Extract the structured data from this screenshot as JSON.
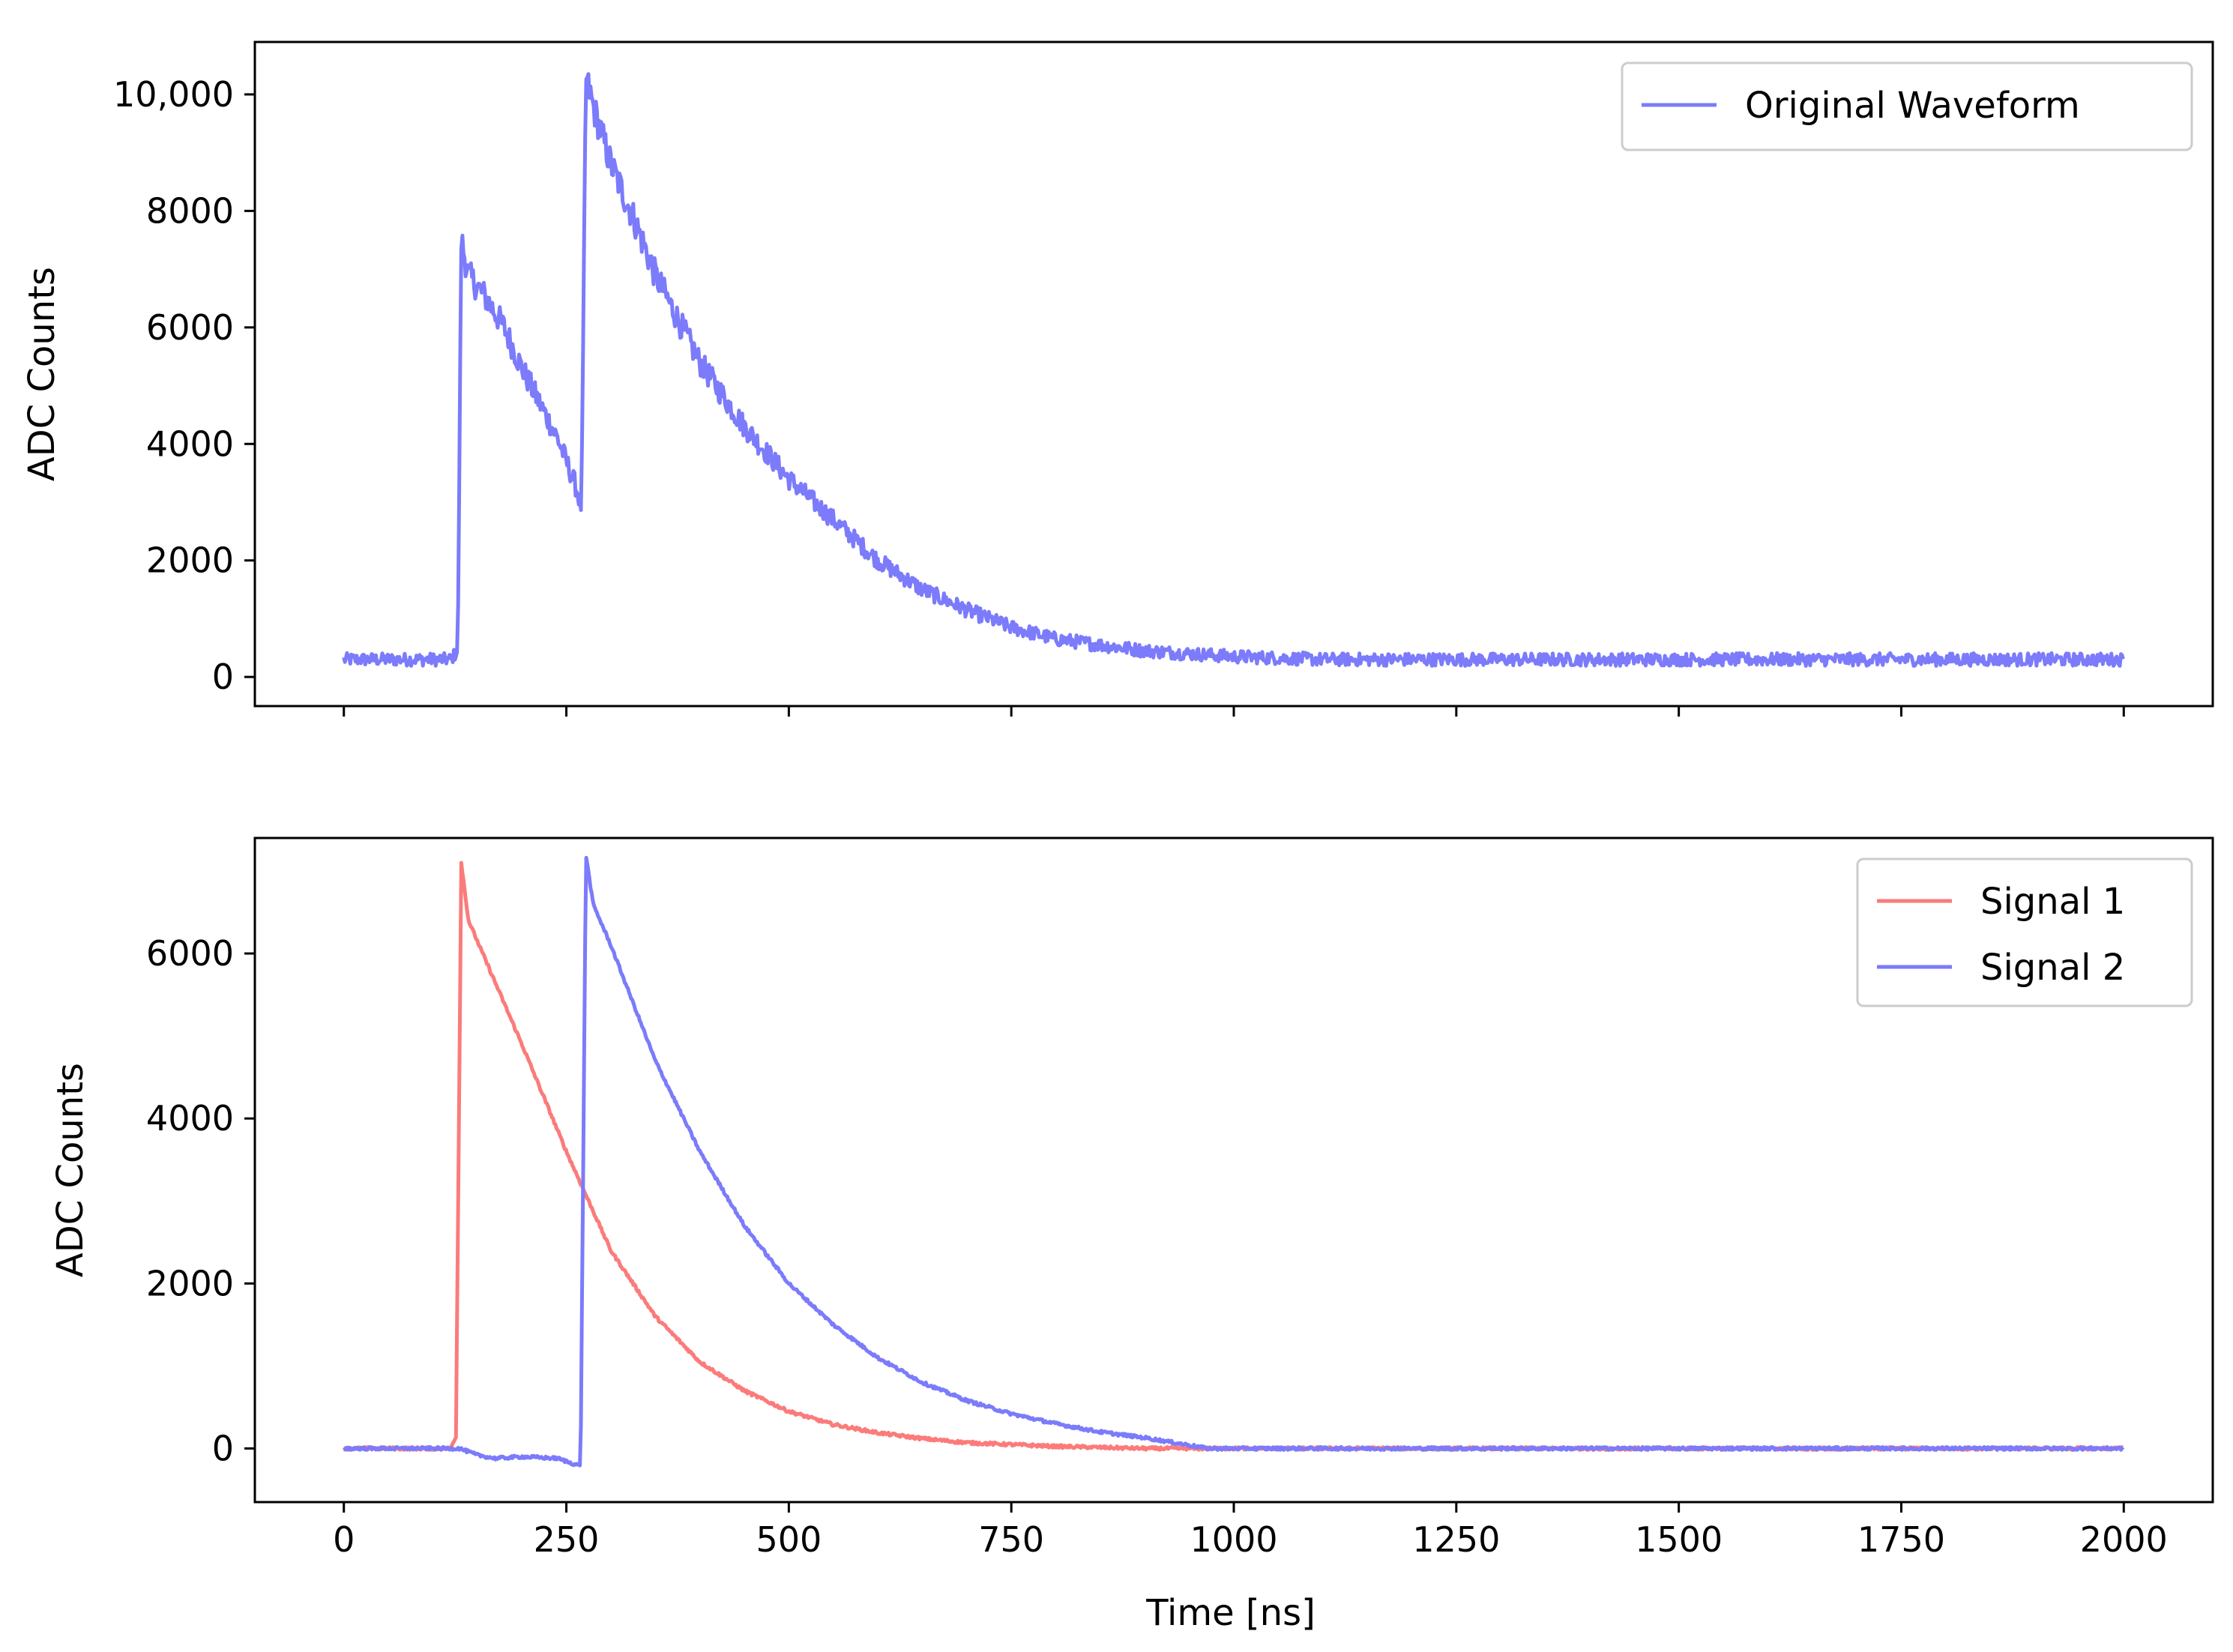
{
  "figure": {
    "xlabel": "Time [ns]"
  },
  "chart_data": [
    {
      "type": "line",
      "panel": "top",
      "xlabel": "",
      "ylabel": "ADC Counts",
      "xlim": [
        -100,
        2100
      ],
      "ylim": [
        -500,
        10900
      ],
      "xticks": [
        0,
        250,
        500,
        750,
        1000,
        1250,
        1500,
        1750,
        2000
      ],
      "xtick_labels_visible": false,
      "yticks": [
        0,
        2000,
        4000,
        6000,
        8000,
        10000
      ],
      "ytick_labels": [
        "0",
        "2000",
        "4000",
        "6000",
        "8000",
        "10,000"
      ],
      "grid": false,
      "legend_position": "top-right",
      "series": [
        {
          "name": "Original Waveform",
          "color": "#7b7bfb",
          "points": [
            [
              0,
              300
            ],
            [
              60,
              300
            ],
            [
              120,
              300
            ],
            [
              128,
              450
            ],
            [
              132,
              7500
            ],
            [
              140,
              6900
            ],
            [
              160,
              6500
            ],
            [
              180,
              6000
            ],
            [
              200,
              5300
            ],
            [
              220,
              4700
            ],
            [
              240,
              4100
            ],
            [
              260,
              3300
            ],
            [
              267,
              2900
            ],
            [
              272,
              10300
            ],
            [
              280,
              9800
            ],
            [
              300,
              8800
            ],
            [
              325,
              7900
            ],
            [
              350,
              6900
            ],
            [
              400,
              5400
            ],
            [
              450,
              4300
            ],
            [
              500,
              3400
            ],
            [
              550,
              2700
            ],
            [
              600,
              2000
            ],
            [
              650,
              1500
            ],
            [
              700,
              1150
            ],
            [
              750,
              850
            ],
            [
              800,
              650
            ],
            [
              900,
              450
            ],
            [
              1000,
              350
            ],
            [
              1100,
              300
            ],
            [
              1200,
              300
            ],
            [
              1400,
              300
            ],
            [
              1600,
              300
            ],
            [
              1800,
              300
            ],
            [
              2000,
              300
            ]
          ]
        }
      ]
    },
    {
      "type": "line",
      "panel": "bottom",
      "xlabel": "Time [ns]",
      "ylabel": "ADC Counts",
      "xlim": [
        -100,
        2100
      ],
      "ylim": [
        -650,
        7400
      ],
      "xticks": [
        0,
        250,
        500,
        750,
        1000,
        1250,
        1500,
        1750,
        2000
      ],
      "xtick_labels": [
        "0",
        "250",
        "500",
        "750",
        "1000",
        "1250",
        "1500",
        "1750",
        "2000"
      ],
      "yticks": [
        0,
        2000,
        4000,
        6000
      ],
      "ytick_labels": [
        "0",
        "2000",
        "4000",
        "6000"
      ],
      "grid": false,
      "legend_position": "top-right",
      "series": [
        {
          "name": "Signal 1",
          "color": "#fb7b7b",
          "points": [
            [
              0,
              0
            ],
            [
              60,
              0
            ],
            [
              120,
              0
            ],
            [
              126,
              150
            ],
            [
              132,
              7100
            ],
            [
              140,
              6400
            ],
            [
              160,
              5900
            ],
            [
              200,
              4900
            ],
            [
              250,
              3600
            ],
            [
              300,
              2400
            ],
            [
              350,
              1600
            ],
            [
              400,
              1050
            ],
            [
              450,
              700
            ],
            [
              500,
              450
            ],
            [
              550,
              290
            ],
            [
              600,
              190
            ],
            [
              650,
              120
            ],
            [
              700,
              70
            ],
            [
              800,
              25
            ],
            [
              900,
              0
            ],
            [
              1000,
              0
            ],
            [
              1500,
              0
            ],
            [
              2000,
              0
            ]
          ]
        },
        {
          "name": "Signal 2",
          "color": "#7b7bfb",
          "points": [
            [
              0,
              0
            ],
            [
              100,
              0
            ],
            [
              130,
              0
            ],
            [
              150,
              -80
            ],
            [
              170,
              -120
            ],
            [
              200,
              -100
            ],
            [
              240,
              -120
            ],
            [
              262,
              -200
            ],
            [
              266,
              -200
            ],
            [
              272,
              7200
            ],
            [
              280,
              6600
            ],
            [
              300,
              6100
            ],
            [
              350,
              4700
            ],
            [
              400,
              3600
            ],
            [
              450,
              2700
            ],
            [
              500,
              2000
            ],
            [
              550,
              1500
            ],
            [
              600,
              1100
            ],
            [
              650,
              800
            ],
            [
              700,
              580
            ],
            [
              750,
              420
            ],
            [
              800,
              300
            ],
            [
              850,
              200
            ],
            [
              900,
              130
            ],
            [
              950,
              40
            ],
            [
              970,
              0
            ],
            [
              1000,
              0
            ],
            [
              1500,
              0
            ],
            [
              2000,
              0
            ]
          ]
        }
      ]
    }
  ]
}
